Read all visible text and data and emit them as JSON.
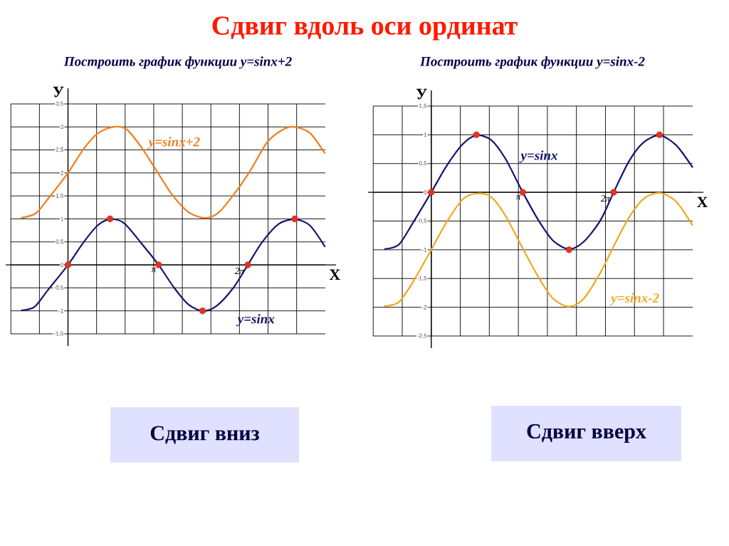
{
  "chart_data": [
    {
      "type": "line",
      "title": "Сдвиг вдоль оси ординат",
      "subtitle": "Построить график функции y=sinx+2",
      "xlabel": "X",
      "ylabel": "У",
      "annotations": [
        "Сдвиг вниз"
      ],
      "xlim": [
        -2.1,
        9.43
      ],
      "ylim": [
        -1.5,
        3.5
      ],
      "xticks": [
        {
          "value": -2.094,
          "label": null
        },
        {
          "value": -1.047,
          "label": null
        },
        {
          "value": 0,
          "label": null
        },
        {
          "value": 1.047,
          "label": null
        },
        {
          "value": 2.094,
          "label": null
        },
        {
          "value": 3.142,
          "label": "π"
        },
        {
          "value": 4.189,
          "label": null
        },
        {
          "value": 5.236,
          "label": null
        },
        {
          "value": 6.283,
          "label": "2π"
        },
        {
          "value": 7.33,
          "label": null
        },
        {
          "value": 8.378,
          "label": null
        }
      ],
      "yticks": [
        {
          "value": 3.5,
          "label": "3,5"
        },
        3,
        {
          "value": 2.5,
          "label": "2,5"
        },
        2,
        {
          "value": 1.5,
          "label": "1,5"
        },
        1,
        {
          "value": 0.5,
          "label": "0,5"
        },
        0,
        {
          "value": -0.5,
          "label": "-0,5"
        },
        -1,
        {
          "value": -1.5,
          "label": "-1,5"
        }
      ],
      "grid": true,
      "legend": false,
      "series": [
        {
          "name": "y=sinx+2",
          "type": "line",
          "marker": "none",
          "color": "#f07f1e",
          "x": [
            -1.72,
            -1.18,
            -0.74,
            0,
            0.57,
            1.09,
            1.66,
            2.14,
            2.66,
            3.19,
            3.8,
            4.41,
            5.02,
            5.54,
            6.15,
            6.68,
            7.29,
            7.81,
            8.29,
            8.86,
            9.42
          ],
          "values": [
            1.02,
            1.12,
            1.43,
            2,
            2.52,
            2.86,
            3.0,
            2.95,
            2.58,
            2.1,
            1.54,
            1.15,
            1.02,
            1.15,
            1.59,
            2.05,
            2.66,
            2.92,
            3.0,
            2.87,
            2.42
          ]
        },
        {
          "name": "y=sinx",
          "type": "line",
          "marker": "none",
          "color": "#14146e",
          "x": [
            -1.72,
            -1.22,
            -0.74,
            0,
            0.57,
            1.09,
            1.54,
            2.05,
            2.66,
            3.32,
            3.88,
            4.41,
            4.93,
            5.45,
            6.07,
            6.59,
            7.11,
            7.72,
            8.31,
            8.86,
            9.42
          ],
          "values": [
            -0.99,
            -0.91,
            -0.55,
            0,
            0.49,
            0.86,
            0.99,
            0.91,
            0.49,
            0,
            -0.49,
            -0.86,
            -1.0,
            -0.89,
            -0.49,
            0,
            0.49,
            0.89,
            0.99,
            0.86,
            0.39
          ]
        },
        {
          "type": "scatter",
          "marker": "circle",
          "color": "#e8321e",
          "x": [
            0,
            1.54,
            3.32,
            4.93,
            6.59,
            8.31
          ],
          "values": [
            0,
            1,
            0,
            -1,
            0,
            1
          ]
        }
      ]
    },
    {
      "type": "line",
      "subtitle": "Построить график функции y=sinx-2",
      "xlabel": "X",
      "ylabel": "У",
      "annotations": [
        "Сдвиг вверх"
      ],
      "xlim": [
        -2.1,
        9.43
      ],
      "ylim": [
        -2.5,
        1.5
      ],
      "xticks": [
        {
          "value": -2.094,
          "label": null
        },
        {
          "value": -1.047,
          "label": null
        },
        {
          "value": 0,
          "label": null
        },
        {
          "value": 1.047,
          "label": null
        },
        {
          "value": 2.094,
          "label": null
        },
        {
          "value": 3.142,
          "label": "π"
        },
        {
          "value": 4.189,
          "label": null
        },
        {
          "value": 5.236,
          "label": null
        },
        {
          "value": 6.283,
          "label": "2π"
        },
        {
          "value": 7.33,
          "label": null
        },
        {
          "value": 8.378,
          "label": null
        }
      ],
      "yticks": [
        {
          "value": 1.5,
          "label": "1,5"
        },
        1,
        {
          "value": 0.5,
          "label": "0,5"
        },
        0,
        {
          "value": -0.5,
          "label": "-0,5"
        },
        -1,
        {
          "value": -1.5,
          "label": "-1,5"
        },
        -2,
        {
          "value": -2.5,
          "label": "-2,5"
        }
      ],
      "grid": true,
      "legend": false,
      "series": [
        {
          "name": "y=sinx",
          "type": "line",
          "marker": "none",
          "color": "#14146e",
          "x": [
            -1.7,
            -1.17,
            -0.66,
            0,
            0.54,
            1.14,
            1.63,
            2.16,
            2.68,
            3.3,
            3.87,
            4.39,
            4.97,
            5.5,
            6.1,
            6.58,
            7.12,
            7.64,
            8.23,
            8.83,
            9.43
          ],
          "values": [
            -0.99,
            -0.91,
            -0.53,
            0,
            0.45,
            0.84,
            0.99,
            0.91,
            0.58,
            0,
            -0.49,
            -0.84,
            -0.99,
            -0.86,
            -0.49,
            0,
            0.53,
            0.86,
            0.99,
            0.82,
            0.43
          ]
        },
        {
          "name": "y=sinx-2",
          "type": "line",
          "marker": "none",
          "color": "#f0a81e",
          "x": [
            -1.7,
            -1.17,
            -0.66,
            0,
            0.54,
            1.14,
            1.65,
            2.16,
            2.68,
            3.27,
            3.87,
            4.39,
            4.97,
            5.5,
            6.1,
            6.61,
            7.12,
            7.64,
            8.23,
            8.83,
            9.43
          ],
          "values": [
            -1.98,
            -1.91,
            -1.56,
            -1,
            -0.53,
            -0.12,
            -0.02,
            -0.08,
            -0.41,
            -0.95,
            -1.48,
            -1.85,
            -1.99,
            -1.85,
            -1.4,
            -0.91,
            -0.45,
            -0.12,
            -0.01,
            -0.16,
            -0.58
          ]
        },
        {
          "type": "scatter",
          "marker": "circle",
          "color": "#e8321e",
          "x": [
            0,
            1.63,
            3.3,
            4.97,
            6.58,
            8.23
          ],
          "values": [
            0,
            1,
            0,
            -1,
            0,
            1
          ]
        }
      ]
    }
  ]
}
